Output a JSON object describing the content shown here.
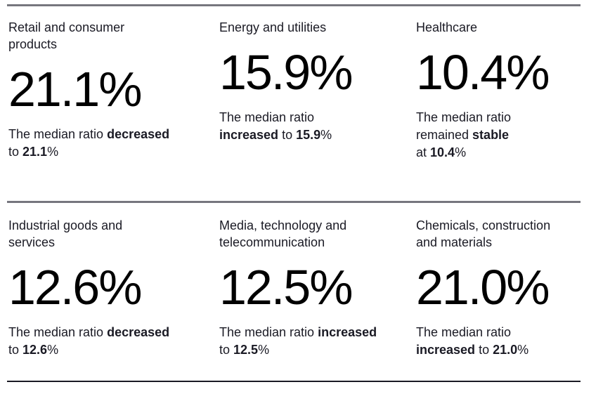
{
  "colors": {
    "background": "#ffffff",
    "text": "#1a1a24",
    "value_text": "#000000",
    "divider_gray": "#76767e",
    "divider_dark": "#1a1a24"
  },
  "cards": [
    {
      "title": "Retail and consumer products",
      "title_lines": [
        "Retail and consumer",
        "products"
      ],
      "value": "21.1%",
      "description_lines": [
        [
          {
            "text": "The median ratio ",
            "bold": false
          },
          {
            "text": "decreased",
            "bold": true
          }
        ],
        [
          {
            "text": "to ",
            "bold": false
          },
          {
            "text": "21.1",
            "bold": true
          },
          {
            "text": "%",
            "bold": false
          }
        ]
      ]
    },
    {
      "title": "Energy and utilities",
      "title_lines": [
        "Energy and utilities"
      ],
      "value": "15.9%",
      "description_lines": [
        [
          {
            "text": "The median ratio",
            "bold": false
          }
        ],
        [
          {
            "text": "increased",
            "bold": true
          },
          {
            "text": " to ",
            "bold": false
          },
          {
            "text": "15.9",
            "bold": true
          },
          {
            "text": "%",
            "bold": false
          }
        ]
      ]
    },
    {
      "title": "Healthcare",
      "title_lines": [
        "Healthcare"
      ],
      "value": "10.4%",
      "description_lines": [
        [
          {
            "text": "The median ratio",
            "bold": false
          }
        ],
        [
          {
            "text": "remained ",
            "bold": false
          },
          {
            "text": "stable",
            "bold": true
          }
        ],
        [
          {
            "text": "at ",
            "bold": false
          },
          {
            "text": "10.4",
            "bold": true
          },
          {
            "text": "%",
            "bold": false
          }
        ]
      ]
    },
    {
      "title": "Industrial goods and services",
      "title_lines": [
        "Industrial goods and",
        "services"
      ],
      "value": "12.6%",
      "description_lines": [
        [
          {
            "text": "The median ratio ",
            "bold": false
          },
          {
            "text": "decreased",
            "bold": true
          }
        ],
        [
          {
            "text": "to ",
            "bold": false
          },
          {
            "text": "12.6",
            "bold": true
          },
          {
            "text": "%",
            "bold": false
          }
        ]
      ]
    },
    {
      "title": "Media, technology and telecommunication",
      "title_lines": [
        "Media, technology and",
        "telecommunication"
      ],
      "value": "12.5%",
      "description_lines": [
        [
          {
            "text": "The median ratio ",
            "bold": false
          },
          {
            "text": "increased",
            "bold": true
          }
        ],
        [
          {
            "text": "to ",
            "bold": false
          },
          {
            "text": "12.5",
            "bold": true
          },
          {
            "text": "%",
            "bold": false
          }
        ]
      ]
    },
    {
      "title": "Chemicals, construction and materials",
      "title_lines": [
        "Chemicals, construction",
        "and materials"
      ],
      "value": "21.0%",
      "description_lines": [
        [
          {
            "text": "The median ratio",
            "bold": false
          }
        ],
        [
          {
            "text": "increased",
            "bold": true
          },
          {
            "text": " to ",
            "bold": false
          },
          {
            "text": "21.0",
            "bold": true
          },
          {
            "text": "%",
            "bold": false
          }
        ]
      ]
    }
  ]
}
